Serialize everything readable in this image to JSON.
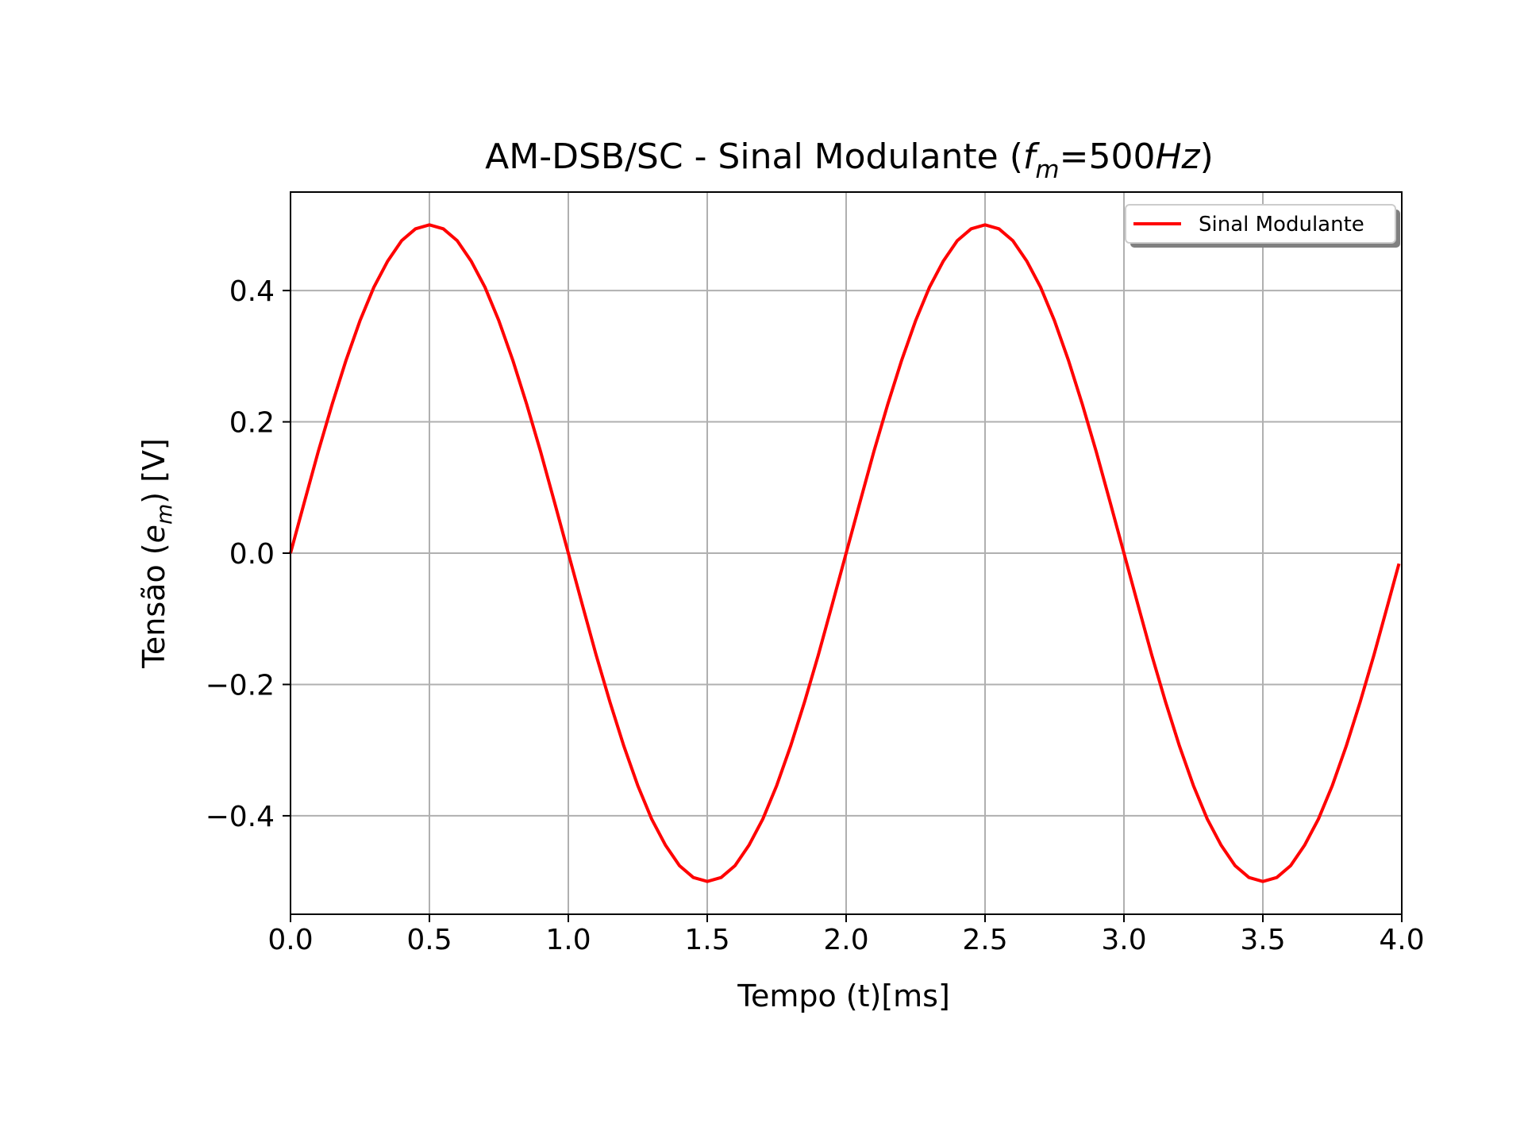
{
  "chart_data": {
    "type": "line",
    "title": {
      "prefix": "AM-DSB/SC - Sinal Modulante (",
      "f": "f",
      "sub": "m",
      "eq": "=500",
      "unit": "Hz",
      "suffix": ")"
    },
    "xlabel": "Tempo (t)[ms]",
    "ylabel": {
      "prefix": "Tensão (",
      "e": "e",
      "sub": "m",
      "suffix": ") [V]"
    },
    "xlim": [
      0.0,
      4.0
    ],
    "ylim": [
      -0.55,
      0.55
    ],
    "x_ticks": [
      {
        "value": 0.0,
        "label": "0.0"
      },
      {
        "value": 0.5,
        "label": "0.5"
      },
      {
        "value": 1.0,
        "label": "1.0"
      },
      {
        "value": 1.5,
        "label": "1.5"
      },
      {
        "value": 2.0,
        "label": "2.0"
      },
      {
        "value": 2.5,
        "label": "2.5"
      },
      {
        "value": 3.0,
        "label": "3.0"
      },
      {
        "value": 3.5,
        "label": "3.5"
      },
      {
        "value": 4.0,
        "label": "4.0"
      }
    ],
    "y_ticks": [
      {
        "value": 0.4,
        "label": "0.4"
      },
      {
        "value": 0.2,
        "label": "0.2"
      },
      {
        "value": 0.0,
        "label": "0.0"
      },
      {
        "value": -0.2,
        "label": "−0.2"
      },
      {
        "value": -0.4,
        "label": "−0.4"
      }
    ],
    "grid": true,
    "legend_position": "top-right",
    "series": [
      {
        "name": "Sinal Modulante",
        "color": "#ff0000",
        "amplitude": 0.5,
        "frequency_hz": 500,
        "x": [
          0.0,
          0.05,
          0.1,
          0.15,
          0.2,
          0.25,
          0.3,
          0.35,
          0.4,
          0.45,
          0.5,
          0.55,
          0.6,
          0.65,
          0.7,
          0.75,
          0.8,
          0.85,
          0.9,
          0.95,
          1.0,
          1.05,
          1.1,
          1.15,
          1.2,
          1.25,
          1.3,
          1.35,
          1.4,
          1.45,
          1.5,
          1.55,
          1.6,
          1.65,
          1.7,
          1.75,
          1.8,
          1.85,
          1.9,
          1.95,
          2.0,
          2.05,
          2.1,
          2.15,
          2.2,
          2.25,
          2.3,
          2.35,
          2.4,
          2.45,
          2.5,
          2.55,
          2.6,
          2.65,
          2.7,
          2.75,
          2.8,
          2.85,
          2.9,
          2.95,
          3.0,
          3.05,
          3.1,
          3.15,
          3.2,
          3.25,
          3.3,
          3.35,
          3.4,
          3.45,
          3.5,
          3.55,
          3.6,
          3.65,
          3.7,
          3.75,
          3.8,
          3.85,
          3.9,
          3.95,
          3.99
        ],
        "y": [
          0.0,
          0.078,
          0.155,
          0.227,
          0.294,
          0.354,
          0.405,
          0.445,
          0.476,
          0.494,
          0.5,
          0.494,
          0.476,
          0.445,
          0.405,
          0.354,
          0.294,
          0.227,
          0.155,
          0.078,
          0.0,
          -0.078,
          -0.155,
          -0.227,
          -0.294,
          -0.354,
          -0.405,
          -0.445,
          -0.476,
          -0.494,
          -0.5,
          -0.494,
          -0.476,
          -0.445,
          -0.405,
          -0.354,
          -0.294,
          -0.227,
          -0.155,
          -0.078,
          0.0,
          0.078,
          0.155,
          0.227,
          0.294,
          0.354,
          0.405,
          0.445,
          0.476,
          0.494,
          0.5,
          0.494,
          0.476,
          0.445,
          0.405,
          0.354,
          0.294,
          0.227,
          0.155,
          0.078,
          0.0,
          -0.078,
          -0.155,
          -0.227,
          -0.294,
          -0.354,
          -0.405,
          -0.445,
          -0.476,
          -0.494,
          -0.5,
          -0.494,
          -0.476,
          -0.445,
          -0.405,
          -0.354,
          -0.294,
          -0.227,
          -0.155,
          -0.078,
          -0.016
        ]
      }
    ]
  }
}
